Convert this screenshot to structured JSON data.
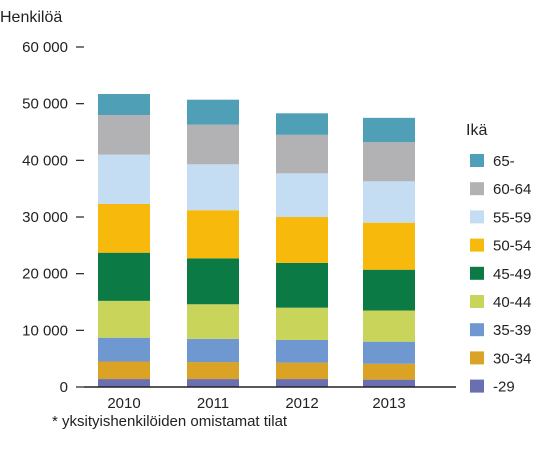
{
  "chart_data": {
    "type": "bar",
    "stacked": true,
    "ylabel": "Henkilöä",
    "ylim": [
      0,
      60000
    ],
    "yticks": [
      0,
      10000,
      20000,
      30000,
      40000,
      50000,
      60000
    ],
    "ytick_labels": [
      "0",
      "10 000",
      "20 000",
      "30 000",
      "40 000",
      "50 000",
      "60 000"
    ],
    "categories": [
      "2010",
      "2011",
      "2012",
      "2013"
    ],
    "legend_title": "Ikä",
    "legend_position": "right",
    "grid": false,
    "series": [
      {
        "name": "-29",
        "color": "#6a6fb1",
        "values": [
          1400,
          1400,
          1400,
          1300
        ]
      },
      {
        "name": "30-34",
        "color": "#dba326",
        "values": [
          3100,
          3000,
          2900,
          2800
        ]
      },
      {
        "name": "35-39",
        "color": "#6f98d0",
        "values": [
          4200,
          4100,
          4000,
          3900
        ]
      },
      {
        "name": "40-44",
        "color": "#c8d45a",
        "values": [
          6500,
          6100,
          5700,
          5500
        ]
      },
      {
        "name": "45-49",
        "color": "#0b7a45",
        "values": [
          8500,
          8100,
          7900,
          7200
        ]
      },
      {
        "name": "50-54",
        "color": "#f7ba0c",
        "values": [
          8600,
          8500,
          8100,
          8300
        ]
      },
      {
        "name": "55-59",
        "color": "#c5ddf3",
        "values": [
          8700,
          8100,
          7700,
          7300
        ]
      },
      {
        "name": "60-64",
        "color": "#b2b2b5",
        "values": [
          7000,
          7000,
          6800,
          6900
        ]
      },
      {
        "name": "65-",
        "color": "#4f9fb6",
        "values": [
          3700,
          4400,
          3800,
          4300
        ]
      }
    ]
  },
  "footnote": "* yksityishenkilöiden omistamat tilat"
}
